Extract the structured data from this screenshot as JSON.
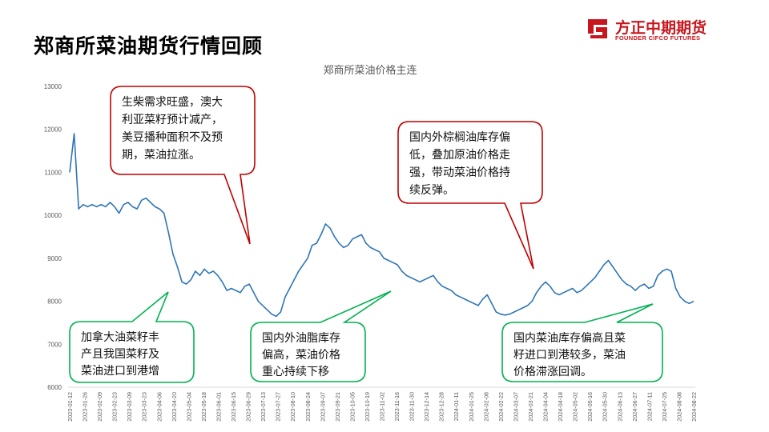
{
  "page": {
    "title": "郑商所菜油期货行情回顾",
    "logo_name": "方正中期期货",
    "logo_sub": "FOUNDER CIFCO FUTURES",
    "brand_color": "#c8161d"
  },
  "chart_data": {
    "type": "line",
    "title": "郑商所菜油价格主连",
    "xlabel": "",
    "ylabel": "",
    "ylim": [
      6000,
      13000
    ],
    "yticks": [
      6000,
      7000,
      8000,
      9000,
      10000,
      11000,
      12000,
      13000
    ],
    "xticks": [
      "2023-01-12",
      "2023-01-26",
      "2023-02-09",
      "2023-02-23",
      "2023-03-09",
      "2023-03-23",
      "2023-04-06",
      "2023-04-20",
      "2023-05-04",
      "2023-05-18",
      "2023-06-01",
      "2023-06-15",
      "2023-06-29",
      "2023-07-13",
      "2023-07-27",
      "2023-08-10",
      "2023-08-24",
      "2023-09-07",
      "2023-09-21",
      "2023-10-05",
      "2023-10-19",
      "2023-11-02",
      "2023-11-16",
      "2023-11-30",
      "2023-12-14",
      "2023-12-28",
      "2024-01-11",
      "2024-01-25",
      "2024-02-08",
      "2024-02-22",
      "2024-03-07",
      "2024-03-21",
      "2024-04-04",
      "2024-04-18",
      "2024-05-02",
      "2024-05-16",
      "2024-05-30",
      "2024-06-13",
      "2024-06-27",
      "2024-07-11",
      "2024-07-25",
      "2024-08-08",
      "2024-08-22"
    ],
    "grid": false,
    "legend": "none",
    "line_color": "#2e75b6",
    "series": [
      {
        "name": "",
        "values": [
          11000,
          11900,
          10150,
          10250,
          10200,
          10250,
          10200,
          10250,
          10200,
          10300,
          10200,
          10050,
          10250,
          10300,
          10200,
          10150,
          10350,
          10400,
          10300,
          10200,
          10150,
          10050,
          9600,
          9100,
          8800,
          8450,
          8400,
          8500,
          8700,
          8600,
          8750,
          8650,
          8700,
          8600,
          8450,
          8250,
          8300,
          8250,
          8200,
          8350,
          8400,
          8200,
          8000,
          7900,
          7800,
          7700,
          7650,
          7750,
          8100,
          8300,
          8500,
          8700,
          8850,
          9000,
          9300,
          9350,
          9550,
          9800,
          9700,
          9500,
          9350,
          9250,
          9300,
          9450,
          9500,
          9550,
          9350,
          9250,
          9200,
          9150,
          9000,
          8950,
          8900,
          8850,
          8700,
          8600,
          8550,
          8500,
          8450,
          8500,
          8550,
          8600,
          8450,
          8350,
          8300,
          8250,
          8150,
          8100,
          8050,
          8000,
          7950,
          7900,
          8050,
          8150,
          7950,
          7750,
          7700,
          7680,
          7700,
          7750,
          7800,
          7850,
          7900,
          8000,
          8200,
          8350,
          8450,
          8350,
          8200,
          8150,
          8200,
          8250,
          8300,
          8200,
          8250,
          8350,
          8450,
          8550,
          8700,
          8850,
          8950,
          8800,
          8650,
          8500,
          8400,
          8350,
          8250,
          8350,
          8400,
          8300,
          8350,
          8600,
          8700,
          8750,
          8700,
          8300,
          8100,
          8000,
          7950,
          8000
        ]
      }
    ],
    "annotations": [
      {
        "name": "callout-top-left",
        "color": "#c00000",
        "lines": [
          "生柴需求旺盛，澳大",
          "利亚菜籽预计减产，",
          "美豆播种面积不及预",
          "期，菜油拉涨。"
        ]
      },
      {
        "name": "callout-top-right",
        "color": "#c00000",
        "lines": [
          "国内外棕榈油库存偏",
          "低，叠加原油价格走",
          "强，带动菜油价格持",
          "续反弹。"
        ]
      },
      {
        "name": "callout-bottom-left",
        "color": "#00b050",
        "lines": [
          "加拿大油菜籽丰",
          "产且我国菜籽及",
          "菜油进口到港增"
        ]
      },
      {
        "name": "callout-bottom-mid",
        "color": "#00b050",
        "lines": [
          "国内外油脂库存",
          "偏高，菜油价格",
          "重心持续下移"
        ]
      },
      {
        "name": "callout-bottom-right",
        "color": "#00b050",
        "lines": [
          "国内菜油库存偏高且菜",
          "籽进口到港较多，菜油",
          "价格滞涨回调。"
        ]
      }
    ]
  }
}
